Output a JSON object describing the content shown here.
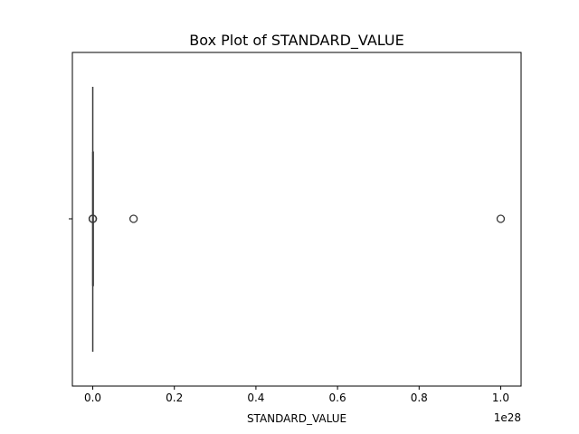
{
  "chart_data": {
    "type": "box",
    "title": "Box Plot of STANDARD_VALUE",
    "xlabel": "STANDARD_VALUE",
    "ylabel": "",
    "x_scale_offset": "1e28",
    "orientation": "horizontal",
    "xlim": [
      -0.05,
      1.05
    ],
    "xticks": [
      0.0,
      0.2,
      0.4,
      0.6,
      0.8,
      1.0
    ],
    "xtick_labels": [
      "0.0",
      "0.2",
      "0.4",
      "0.6",
      "0.8",
      "1.0"
    ],
    "box": {
      "q1": 0.0,
      "median": 0.0,
      "q3": 0.0,
      "whisker_low": 0.0,
      "whisker_high": 0.0
    },
    "outliers": [
      0.0,
      0.0,
      0.0,
      0.1,
      1.0
    ],
    "grid": false,
    "colors": {
      "box_line": "#3a3a3a",
      "outlier_edge": "#3a3a3a",
      "axes": "#000000"
    }
  }
}
